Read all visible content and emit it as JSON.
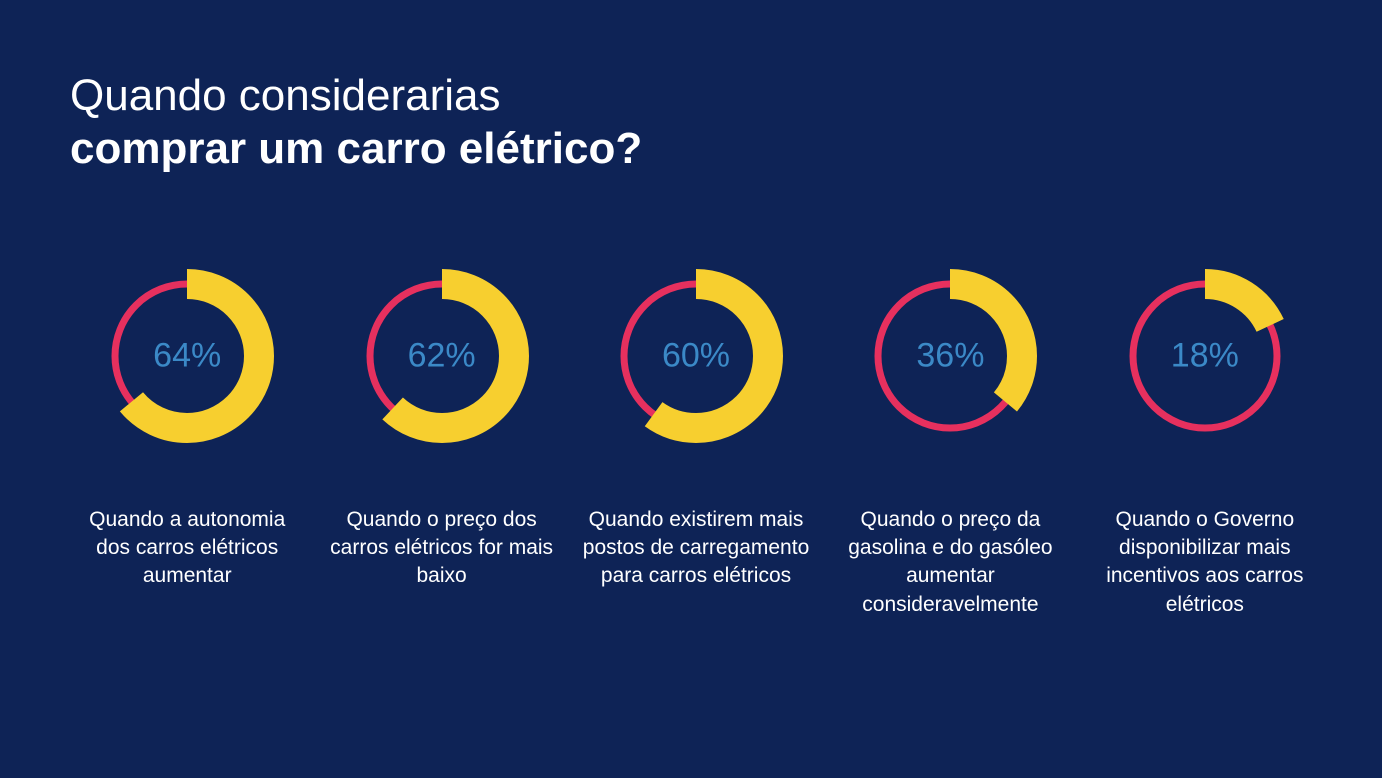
{
  "title": {
    "line1": "Quando considerarias",
    "line2": "comprar um carro elétrico?"
  },
  "chart": {
    "type": "donut-multiples",
    "background_color": "#0e2356",
    "title_color": "#ffffff",
    "title_line1_weight": 300,
    "title_line2_weight": 700,
    "title_fontsize": 44,
    "caption_color": "#ffffff",
    "caption_fontsize": 21,
    "caption_weight": 300,
    "pct_color": "#3b89c7",
    "pct_fontsize": 34,
    "donut_size": 180,
    "ring_radius": 72,
    "track_stroke": 7,
    "fill_stroke": 30,
    "track_color": "#e6305e",
    "fill_color": "#f7cf2f",
    "start_angle_deg": -90,
    "items": [
      {
        "value": 64,
        "pct_label": "64%",
        "caption": "Quando a autonomia dos carros elétricos aumentar"
      },
      {
        "value": 62,
        "pct_label": "62%",
        "caption": "Quando o preço dos carros elétricos for mais baixo"
      },
      {
        "value": 60,
        "pct_label": "60%",
        "caption": "Quando existirem mais postos de carregamento para carros elétricos"
      },
      {
        "value": 36,
        "pct_label": "36%",
        "caption": "Quando o preço da gasolina e do gasóleo aumentar consideravelmente"
      },
      {
        "value": 18,
        "pct_label": "18%",
        "caption": "Quando o Governo disponibilizar mais incentivos aos carros elétricos"
      }
    ]
  }
}
